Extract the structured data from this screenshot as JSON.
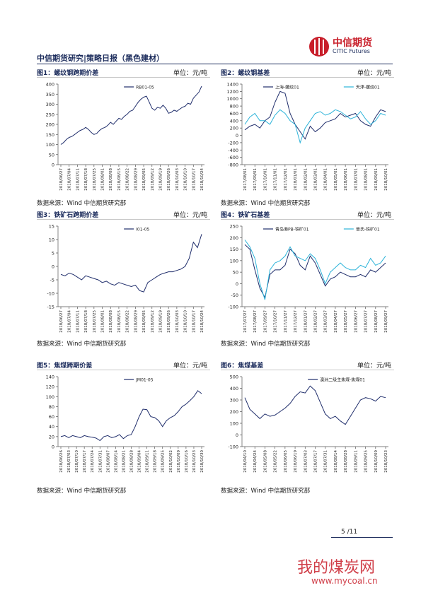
{
  "header": {
    "title": "中信期货研究|策略日报（黑色建材）",
    "logo_cn": "中信期货",
    "logo_en": "CITIC Futures"
  },
  "footer": {
    "page": "5 /11"
  },
  "watermark": {
    "text": "我的煤炭网",
    "url": "www.mycoal.cn"
  },
  "chart_data": [
    {
      "type": "line",
      "title": "图1：螺纹钢跨期价差",
      "unit": "单位：元/吨",
      "source": "数据来源：Wind 中信期货研究部",
      "categories": [
        "2018/06/27",
        null,
        null,
        "2018/07/04",
        null,
        null,
        "2018/07/11",
        null,
        null,
        "2018/07/18",
        null,
        null,
        "2018/07/25",
        null,
        null,
        "2018/08/01",
        null,
        null,
        "2018/08/08",
        null,
        null,
        "2018/08/15",
        null,
        null,
        "2018/08/22",
        null,
        null,
        "2018/08/29",
        null,
        null,
        "2018/09/05",
        null,
        null,
        "2018/09/12",
        null,
        null,
        "2018/09/19",
        null,
        null,
        "2018/09/26",
        null,
        null,
        "2018/10/03",
        null,
        null,
        "2018/10/10",
        null,
        null,
        "2018/10/17",
        null,
        null,
        "2018/10/24"
      ],
      "series": [
        {
          "name": "RB01-05",
          "color": "#1f2d6b",
          "values": [
            100,
            110,
            125,
            135,
            140,
            150,
            160,
            170,
            175,
            185,
            175,
            160,
            150,
            155,
            170,
            180,
            185,
            195,
            210,
            200,
            215,
            230,
            225,
            240,
            250,
            265,
            270,
            290,
            310,
            325,
            335,
            340,
            310,
            280,
            270,
            285,
            280,
            295,
            280,
            255,
            260,
            270,
            265,
            275,
            285,
            290,
            305,
            300,
            330,
            345,
            360,
            390
          ]
        }
      ],
      "ylim": [
        0,
        400
      ],
      "yticks": [
        0,
        50,
        100,
        150,
        200,
        250,
        300,
        350,
        400
      ],
      "grid": false,
      "legend": "top"
    },
    {
      "type": "line",
      "title": "图2：螺纹钢基差",
      "unit": "单位：元/吨",
      "source": "数据来源：Wind 中信期货研究部",
      "categories": [
        "2017/08/01",
        null,
        "2017/09/01",
        null,
        "2017/10/01",
        null,
        "2017/11/01",
        null,
        "2017/12/01",
        null,
        "2018/01/01",
        null,
        "2018/02/01",
        null,
        "2018/03/01",
        null,
        "2018/04/01",
        null,
        "2018/05/01",
        null,
        "2018/06/01",
        null,
        "2018/07/01",
        null,
        "2018/08/01",
        null,
        "2018/09/01",
        null,
        "2018/10/01"
      ],
      "series": [
        {
          "name": "上海-螺纹01",
          "color": "#1f2d6b",
          "values": [
            150,
            250,
            300,
            200,
            400,
            500,
            900,
            1200,
            1150,
            600,
            300,
            100,
            -100,
            250,
            100,
            200,
            350,
            400,
            450,
            600,
            500,
            550,
            600,
            400,
            300,
            250,
            500,
            700,
            650
          ]
        },
        {
          "name": "天津-螺纹01",
          "color": "#2bb3d9",
          "values": [
            300,
            500,
            600,
            400,
            400,
            300,
            550,
            700,
            600,
            400,
            300,
            -200,
            200,
            400,
            600,
            650,
            550,
            600,
            700,
            650,
            550,
            450,
            500,
            650,
            450,
            300,
            400,
            600,
            550
          ]
        }
      ],
      "ylim": [
        -800,
        1400
      ],
      "yticks": [
        -800,
        -600,
        -400,
        -200,
        0,
        200,
        400,
        600,
        800,
        1000,
        1200,
        1400
      ],
      "grid": false,
      "legend": "top"
    },
    {
      "type": "line",
      "title": "图3：铁矿石跨期价差",
      "unit": "单位：元/吨",
      "source": "数据来源：Wind 中信期货研究部",
      "categories": [
        "2018/06/27",
        null,
        "2018/07/04",
        null,
        "2018/07/11",
        null,
        "2018/07/18",
        null,
        "2018/07/25",
        null,
        "2018/08/01",
        null,
        "2018/08/08",
        null,
        "2018/08/15",
        null,
        "2018/08/22",
        null,
        "2018/08/29",
        null,
        "2018/09/05",
        null,
        "2018/09/12",
        null,
        "2018/09/19",
        null,
        "2018/09/26",
        null,
        "2018/10/03",
        null,
        "2018/10/10",
        null,
        "2018/10/17",
        null,
        "2018/10/24"
      ],
      "series": [
        {
          "name": "I01-05",
          "color": "#1f2d6b",
          "values": [
            -3,
            -3.5,
            -2.5,
            -3,
            -4,
            -5,
            -3.5,
            -4,
            -4.5,
            -5,
            -6,
            -5.5,
            -6.5,
            -7,
            -6,
            -6.5,
            -7,
            -7.5,
            -7,
            -9,
            -9.5,
            -6,
            -5,
            -4,
            -3,
            -2.5,
            -2,
            -2,
            -1.5,
            -1,
            0,
            3,
            9,
            7,
            12
          ]
        }
      ],
      "ylim": [
        -15,
        15
      ],
      "yticks": [
        -15,
        -10,
        -5,
        0,
        5,
        10,
        15
      ],
      "grid": false,
      "legend": "top"
    },
    {
      "type": "line",
      "title": "图4：铁矿石基差",
      "unit": "单位：元/吨",
      "source": "数据来源：Wind 中信期货研究部",
      "categories": [
        "2017/07/27",
        null,
        "2017/08/27",
        null,
        "2017/09/27",
        null,
        "2017/10/27",
        null,
        "2017/11/27",
        null,
        "2017/12/27",
        null,
        "2018/01/27",
        null,
        "2018/02/27",
        null,
        "2018/03/27",
        null,
        "2018/04/27",
        null,
        "2018/05/27",
        null,
        "2018/06/27",
        null,
        "2018/07/27",
        null,
        "2018/08/27",
        null,
        "2018/09/27"
      ],
      "series": [
        {
          "name": "青岛港PB-铁矿01",
          "color": "#1f2d6b",
          "values": [
            170,
            150,
            60,
            -20,
            -60,
            40,
            60,
            60,
            80,
            150,
            130,
            80,
            60,
            120,
            90,
            40,
            -10,
            20,
            30,
            50,
            40,
            30,
            30,
            40,
            30,
            60,
            50,
            70,
            90
          ]
        },
        {
          "name": "普氏-铁矿01",
          "color": "#2bb3d9",
          "values": [
            190,
            160,
            110,
            0,
            -70,
            60,
            90,
            100,
            120,
            160,
            120,
            110,
            100,
            130,
            110,
            60,
            0,
            50,
            70,
            90,
            70,
            60,
            60,
            80,
            70,
            110,
            80,
            90,
            120
          ]
        }
      ],
      "ylim": [
        -100,
        250
      ],
      "yticks": [
        -100,
        -50,
        0,
        50,
        100,
        150,
        200,
        250
      ],
      "grid": false,
      "legend": "top"
    },
    {
      "type": "line",
      "title": "图5：焦煤跨期价差",
      "unit": "单位：元/吨",
      "source": "数据来源：Wind 中信期货研究部",
      "categories": [
        "2018/06/26",
        null,
        "2018/07/03",
        null,
        "2018/07/10",
        null,
        "2018/07/17",
        null,
        "2018/07/24",
        null,
        "2018/07/31",
        null,
        "2018/08/07",
        null,
        "2018/08/14",
        null,
        "2018/08/21",
        null,
        "2018/08/28",
        null,
        "2018/09/04",
        null,
        "2018/09/11",
        null,
        "2018/09/18",
        null,
        "2018/09/25",
        null,
        "2018/10/02",
        null,
        "2018/10/09",
        null,
        "2018/10/16",
        null,
        "2018/10/23",
        null,
        "2018/10/30"
      ],
      "series": [
        {
          "name": "JM01-05",
          "color": "#1f2d6b",
          "values": [
            20,
            22,
            18,
            22,
            20,
            18,
            22,
            20,
            19,
            17,
            12,
            20,
            22,
            18,
            20,
            24,
            16,
            22,
            24,
            40,
            60,
            75,
            74,
            60,
            58,
            52,
            40,
            52,
            58,
            62,
            70,
            80,
            85,
            92,
            100,
            112,
            106
          ]
        }
      ],
      "ylim": [
        0,
        140
      ],
      "yticks": [
        0,
        20,
        40,
        60,
        80,
        100,
        120,
        140
      ],
      "grid": false,
      "legend": "top"
    },
    {
      "type": "line",
      "title": "图6：焦煤基差",
      "unit": "单位：元/吨",
      "source": "数据来源：Wind 中信期货研究部",
      "categories": [
        "2018/04/10",
        null,
        "2018/04/24",
        null,
        "2018/05/08",
        null,
        "2018/05/22",
        null,
        "2018/06/05",
        null,
        "2018/06/19",
        null,
        "2018/07/03",
        null,
        "2018/07/17",
        null,
        "2018/07/31",
        null,
        "2018/08/14",
        null,
        "2018/08/28",
        null,
        "2018/09/11",
        null,
        "2018/09/25",
        null,
        "2018/10/09",
        null,
        "2018/10/23"
      ],
      "series": [
        {
          "name": "澳洲二级主焦煤-焦煤01",
          "color": "#1f2d6b",
          "values": [
            320,
            220,
            180,
            140,
            180,
            160,
            170,
            200,
            230,
            270,
            330,
            370,
            360,
            420,
            380,
            280,
            180,
            140,
            160,
            120,
            90,
            160,
            230,
            300,
            320,
            310,
            290,
            330,
            320
          ]
        }
      ],
      "ylim": [
        -100,
        500
      ],
      "yticks": [
        -100,
        0,
        100,
        200,
        300,
        400,
        500
      ],
      "grid": false,
      "legend": "top"
    }
  ]
}
